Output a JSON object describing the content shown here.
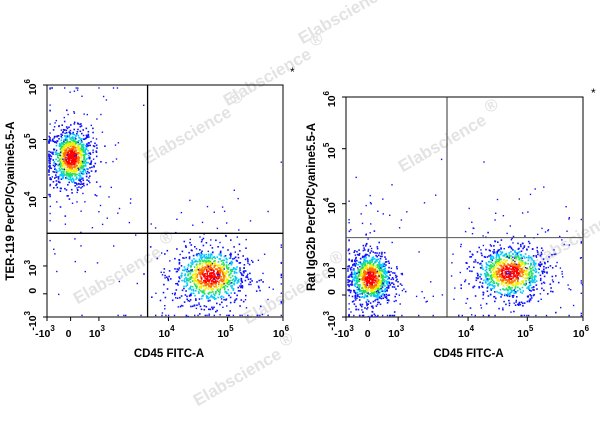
{
  "watermark": "Elabscience",
  "watermark_mark": "®",
  "chart_data": [
    {
      "type": "scatter",
      "subtype": "flow-cytometry-density",
      "title": "",
      "corner_mark": "*",
      "xlabel": "CD45 FITC-A",
      "ylabel": "TER-119 PerCP/Cyanine5.5-A",
      "xscale": "biexponential",
      "yscale": "biexponential",
      "xlim": [
        -1000,
        1000000
      ],
      "ylim": [
        -1000,
        1000000
      ],
      "xticks": [
        {
          "base": "-10",
          "exp": "3"
        },
        {
          "base": "0",
          "exp": ""
        },
        {
          "base": "10",
          "exp": "3"
        },
        {
          "base": "10",
          "exp": "4"
        },
        {
          "base": "10",
          "exp": "5"
        },
        {
          "base": "10",
          "exp": "6"
        }
      ],
      "yticks": [
        {
          "base": "-10",
          "exp": "3"
        },
        {
          "base": "0",
          "exp": ""
        },
        {
          "base": "10",
          "exp": "3"
        },
        {
          "base": "10",
          "exp": "4"
        },
        {
          "base": "10",
          "exp": "5"
        },
        {
          "base": "10",
          "exp": "6"
        }
      ],
      "gate": {
        "x": 5000,
        "y": 3000
      },
      "color_scale": [
        "#1010ff",
        "#00c8ff",
        "#20e060",
        "#f0f000",
        "#ff7000",
        "#ff0000"
      ],
      "populations": [
        {
          "name": "",
          "x_center": 0,
          "y_center": 50000,
          "x_spread": 1500,
          "y_spread_decades": 0.25,
          "peak_x": 0,
          "peak_y": 50000
        },
        {
          "name": "",
          "x_center": 50000,
          "y_center": 500,
          "x_spread_decades": 0.3,
          "y_spread": 900,
          "peak_x": 50000,
          "peak_y": 1500
        }
      ]
    },
    {
      "type": "scatter",
      "subtype": "flow-cytometry-density",
      "title": "",
      "corner_mark": "*",
      "xlabel": "CD45 FITC-A",
      "ylabel": "Rat IgG2b PerCP/Cyanine5.5-A",
      "xscale": "biexponential",
      "yscale": "biexponential",
      "xlim": [
        -1000,
        1000000
      ],
      "ylim": [
        -1000,
        1000000
      ],
      "xticks": [
        {
          "base": "-10",
          "exp": "3"
        },
        {
          "base": "0",
          "exp": ""
        },
        {
          "base": "10",
          "exp": "3"
        },
        {
          "base": "10",
          "exp": "4"
        },
        {
          "base": "10",
          "exp": "5"
        },
        {
          "base": "10",
          "exp": "6"
        }
      ],
      "yticks": [
        {
          "base": "-10",
          "exp": "3"
        },
        {
          "base": "0",
          "exp": ""
        },
        {
          "base": "10",
          "exp": "3"
        },
        {
          "base": "10",
          "exp": "4"
        },
        {
          "base": "10",
          "exp": "5"
        },
        {
          "base": "10",
          "exp": "6"
        }
      ],
      "gate": {
        "x": 5000,
        "y": 3000
      },
      "color_scale": [
        "#1010ff",
        "#00c8ff",
        "#20e060",
        "#f0f000",
        "#ff7000",
        "#ff0000"
      ],
      "populations": [
        {
          "name": "",
          "x_center": 0,
          "y_center": 500,
          "x_spread": 1000,
          "y_spread": 800,
          "peak_x": 0,
          "peak_y": 500
        },
        {
          "name": "",
          "x_center": 50000,
          "y_center": 800,
          "x_spread_decades": 0.3,
          "y_spread": 900,
          "peak_x": 50000,
          "peak_y": 1000
        }
      ]
    }
  ]
}
